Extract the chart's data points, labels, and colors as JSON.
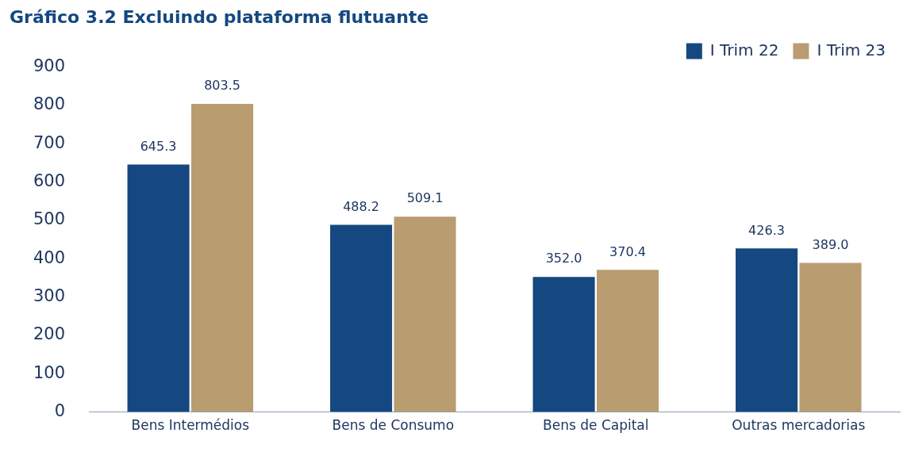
{
  "chart_data": {
    "type": "bar",
    "title": "Gráfico 3.2 Excluindo plataforma flutuante",
    "categories": [
      "Bens Intermédios",
      "Bens de Consumo",
      "Bens de Capital",
      "Outras mercadorias"
    ],
    "series": [
      {
        "name": "I Trim 22",
        "color": "#154880",
        "values": [
          645.3,
          488.2,
          352.0,
          426.3
        ],
        "value_labels": [
          "645.3",
          "488.2",
          "352.0",
          "426.3"
        ]
      },
      {
        "name": "I Trim 23",
        "color": "#b99c6f",
        "values": [
          803.5,
          509.1,
          370.4,
          389.0
        ],
        "value_labels": [
          "803.5",
          "509.1",
          "370.4",
          "389.0"
        ]
      }
    ],
    "ylim": [
      0,
      900
    ],
    "yticks": [
      0,
      100,
      200,
      300,
      400,
      500,
      600,
      700,
      800,
      900
    ],
    "grid": false,
    "legend": "top right"
  }
}
